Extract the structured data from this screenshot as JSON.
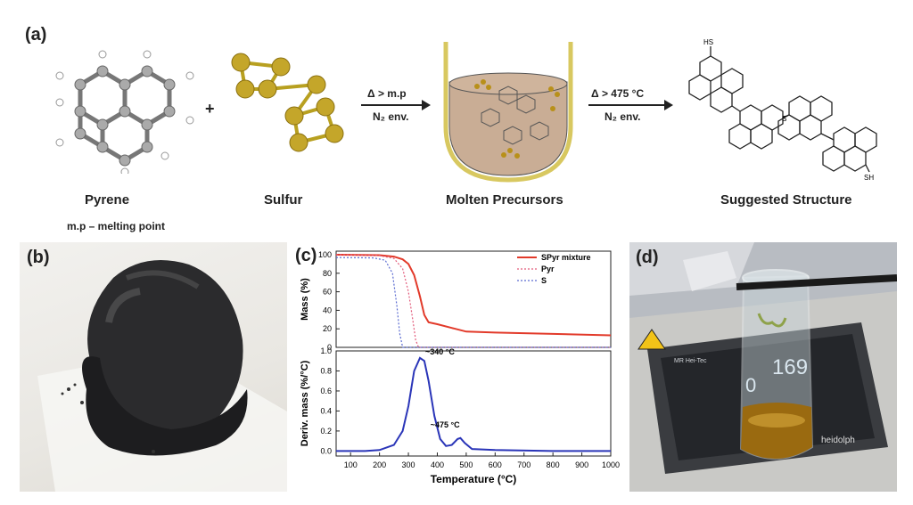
{
  "panel_a": {
    "label": "(a)",
    "pyrene": "Pyrene",
    "sulfur": "Sulfur",
    "molten": "Molten Precursors",
    "suggested": "Suggested Structure",
    "plus": "+",
    "mp_note": "m.p – melting point",
    "arrow1_top": "Δ > m.p",
    "arrow1_bottom": "N₂ env.",
    "arrow2_top": "Δ > 475 °C",
    "arrow2_bottom": "N₂ env.",
    "hs_label": "HS",
    "sh_label": "SH",
    "s_label": "S"
  },
  "panel_b": {
    "label": "(b)"
  },
  "panel_c": {
    "label": "(c)"
  },
  "panel_d": {
    "label": "(d)",
    "display_left": "0",
    "display_right": "169",
    "brand": "heidolph",
    "model": "MR Hei-Tec"
  },
  "chart_data": [
    {
      "type": "line",
      "ylabel": "Mass (%)",
      "ylim": [
        0,
        100
      ],
      "yticks": [
        0,
        20,
        40,
        60,
        80,
        100
      ],
      "xlim": [
        50,
        1000
      ],
      "legend_placement": "top-right",
      "series": [
        {
          "name": "SPyr mixture",
          "color": "#e23a2a",
          "style": "solid",
          "x": [
            50,
            200,
            250,
            280,
            300,
            320,
            340,
            355,
            370,
            400,
            450,
            500,
            600,
            800,
            1000
          ],
          "y": [
            100,
            99.5,
            98,
            95,
            90,
            78,
            55,
            35,
            27,
            25,
            21,
            17,
            16,
            14.5,
            13
          ]
        },
        {
          "name": "Pyr",
          "color": "#e25a7a",
          "style": "dotted",
          "x": [
            50,
            200,
            250,
            280,
            300,
            315,
            325,
            335,
            1000
          ],
          "y": [
            100,
            99,
            96,
            85,
            60,
            30,
            8,
            0,
            0
          ]
        },
        {
          "name": "S",
          "color": "#5a6ad0",
          "style": "dotted",
          "x": [
            50,
            180,
            220,
            245,
            260,
            270,
            280,
            1000
          ],
          "y": [
            97,
            96.5,
            94,
            80,
            45,
            15,
            0,
            0
          ]
        }
      ]
    },
    {
      "type": "line",
      "xlabel": "Temperature (°C)",
      "ylabel": "Deriv. mass (%/°C)",
      "ylim": [
        -0.05,
        1.0
      ],
      "yticks": [
        0.0,
        0.2,
        0.4,
        0.6,
        0.8,
        1.0
      ],
      "xlim": [
        50,
        1000
      ],
      "xticks": [
        100,
        200,
        300,
        400,
        500,
        600,
        700,
        800,
        900,
        1000
      ],
      "annotations": [
        "~340 °C",
        "~475 °C"
      ],
      "series": [
        {
          "name": "",
          "color": "#2a35b8",
          "style": "solid",
          "x": [
            50,
            150,
            200,
            250,
            280,
            300,
            320,
            340,
            355,
            370,
            390,
            410,
            430,
            450,
            470,
            480,
            495,
            520,
            600,
            800,
            1000
          ],
          "y": [
            0,
            0,
            0.01,
            0.06,
            0.2,
            0.45,
            0.8,
            0.93,
            0.9,
            0.7,
            0.35,
            0.12,
            0.05,
            0.06,
            0.12,
            0.13,
            0.08,
            0.02,
            0.01,
            0,
            0
          ]
        }
      ]
    }
  ]
}
